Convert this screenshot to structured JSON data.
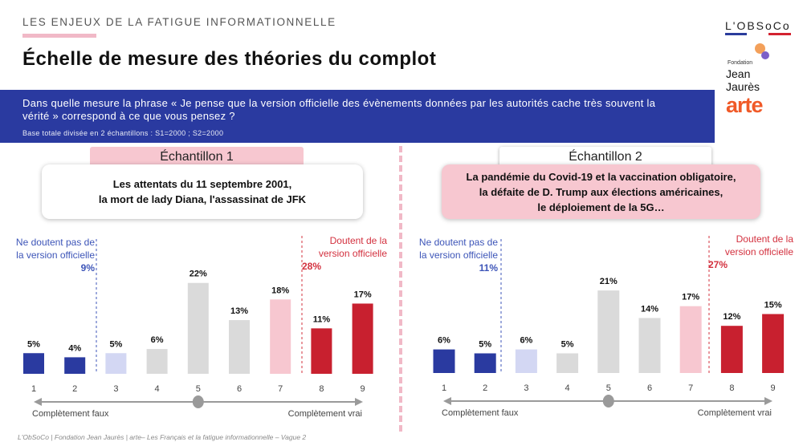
{
  "header": {
    "kicker": "LES ENJEUX DE LA FATIGUE INFORMATIONNELLE",
    "title": "Échelle de mesure des théories du complot"
  },
  "logos": {
    "obsoco": "L'OBSoCo",
    "fjj_small": "Fondation",
    "fjj_big": "Jean Jaurès",
    "arte": "arte"
  },
  "banner": {
    "question": "Dans quelle mesure la phrase « Je pense que la version officielle des évènements données par les autorités cache très souvent la vérité » correspond à ce que vous pensez ?",
    "base": "Base totale divisée en 2 échantillons : S1=2000 ; S2=2000"
  },
  "colors": {
    "dark_blue": "#2a3aa0",
    "light_blue": "#d3d7f3",
    "grey": "#dadada",
    "light_pink": "#f7c7d0",
    "red": "#c8202f"
  },
  "chart_data": [
    {
      "type": "bar",
      "sample_label": "Échantillon 1",
      "statement_lines": [
        "Les attentats du 11 septembre 2001,",
        "la mort de lady Diana, l'assassinat de JFK"
      ],
      "categories": [
        "1",
        "2",
        "3",
        "4",
        "5",
        "6",
        "7",
        "8",
        "9"
      ],
      "values": [
        5,
        4,
        5,
        6,
        22,
        13,
        18,
        11,
        17
      ],
      "labels": [
        "5%",
        "4%",
        "5%",
        "6%",
        "22%",
        "13%",
        "18%",
        "11%",
        "17%"
      ],
      "bar_colors": [
        "#2a3aa0",
        "#2a3aa0",
        "#d3d7f3",
        "#dadada",
        "#dadada",
        "#dadada",
        "#f7c7d0",
        "#c8202f",
        "#c8202f"
      ],
      "left_group": {
        "label_line1": "Ne doutent pas de",
        "label_line2": "la version officielle",
        "total": "9%"
      },
      "right_group": {
        "label_line1": "Doutent de la",
        "label_line2": "version officielle",
        "total": "28%"
      },
      "axis_left_label": "Complètement faux",
      "axis_right_label": "Complètement vrai"
    },
    {
      "type": "bar",
      "sample_label": "Échantillon 2",
      "statement_lines": [
        "La pandémie du Covid-19 et la vaccination obligatoire,",
        "la défaite de D. Trump aux élections américaines,",
        "le déploiement de la 5G…"
      ],
      "categories": [
        "1",
        "2",
        "3",
        "4",
        "5",
        "6",
        "7",
        "8",
        "9"
      ],
      "values": [
        6,
        5,
        6,
        5,
        21,
        14,
        17,
        12,
        15
      ],
      "labels": [
        "6%",
        "5%",
        "6%",
        "5%",
        "21%",
        "14%",
        "17%",
        "12%",
        "15%"
      ],
      "bar_colors": [
        "#2a3aa0",
        "#2a3aa0",
        "#d3d7f3",
        "#dadada",
        "#dadada",
        "#dadada",
        "#f7c7d0",
        "#c8202f",
        "#c8202f"
      ],
      "left_group": {
        "label_line1": "Ne doutent pas de",
        "label_line2": "la version officielle",
        "total": "11%"
      },
      "right_group": {
        "label_line1": "Doutent de la",
        "label_line2": "version officielle",
        "total": "27%"
      },
      "axis_left_label": "Complètement faux",
      "axis_right_label": "Complètement vrai"
    }
  ],
  "footer": "L'ObSoCo | Fondation Jean Jaurès | arte– Les Français et la fatigue informationnelle – Vague 2"
}
